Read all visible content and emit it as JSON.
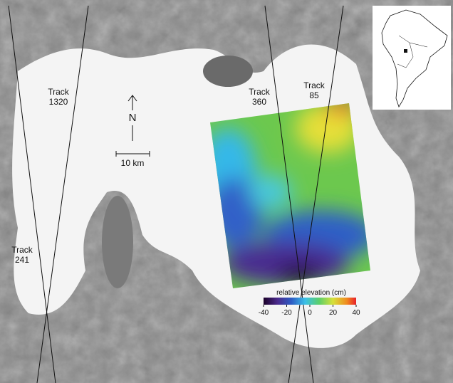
{
  "map": {
    "tracks": [
      {
        "label": "Track",
        "number": "1320"
      },
      {
        "label": "Track",
        "number": "360"
      },
      {
        "label": "Track",
        "number": "85"
      },
      {
        "label": "Track",
        "number": "241"
      }
    ],
    "north_label": "N",
    "scale_label": "10 km",
    "colorbar": {
      "label": "relative elevation (cm)",
      "lim": [
        -40,
        40
      ],
      "ticks": [
        -40,
        -20,
        0,
        20,
        40
      ]
    }
  }
}
